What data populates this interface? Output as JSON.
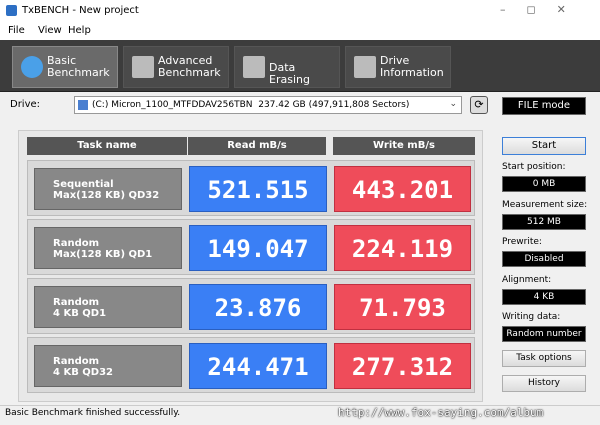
{
  "window": {
    "title": "TxBENCH - New project"
  },
  "menu": [
    "File",
    "View",
    "Help"
  ],
  "tabs": [
    [
      "Basic",
      "Benchmark"
    ],
    [
      "Advanced",
      "Benchmark"
    ],
    [
      "Data Erasing"
    ],
    [
      "Drive",
      "Information"
    ]
  ],
  "drive": {
    "label": "Drive:",
    "selection": "(C:) Micron_1100_MTFDDAV256TBN  237.42 GB (497,911,808 Sectors)",
    "mode": "FILE mode"
  },
  "table": {
    "headers": [
      "Task name",
      "Read mB/s",
      "Write mB/s"
    ],
    "rows": [
      {
        "task": [
          "Sequential",
          "Max(128 KB) QD32"
        ],
        "read": "521.515",
        "write": "443.201"
      },
      {
        "task": [
          "Random",
          "Max(128 KB) QD1"
        ],
        "read": "149.047",
        "write": "224.119"
      },
      {
        "task": [
          "Random",
          "4 KB QD1"
        ],
        "read": "23.876",
        "write": "71.793"
      },
      {
        "task": [
          "Random",
          "4 KB QD32"
        ],
        "read": "244.471",
        "write": "277.312"
      }
    ]
  },
  "settings": {
    "start": "Start",
    "fields": [
      {
        "label": "Start position:",
        "value": "0 MB"
      },
      {
        "label": "Measurement size:",
        "value": "512 MB"
      },
      {
        "label": "Prewrite:",
        "value": "Disabled"
      },
      {
        "label": "Alignment:",
        "value": "4 KB"
      },
      {
        "label": "Writing data:",
        "value": "Random number"
      }
    ],
    "task_options": "Task options",
    "history": "History"
  },
  "status": "Basic Benchmark finished successfully.",
  "watermark": "http://www.fox-saying.com/album"
}
